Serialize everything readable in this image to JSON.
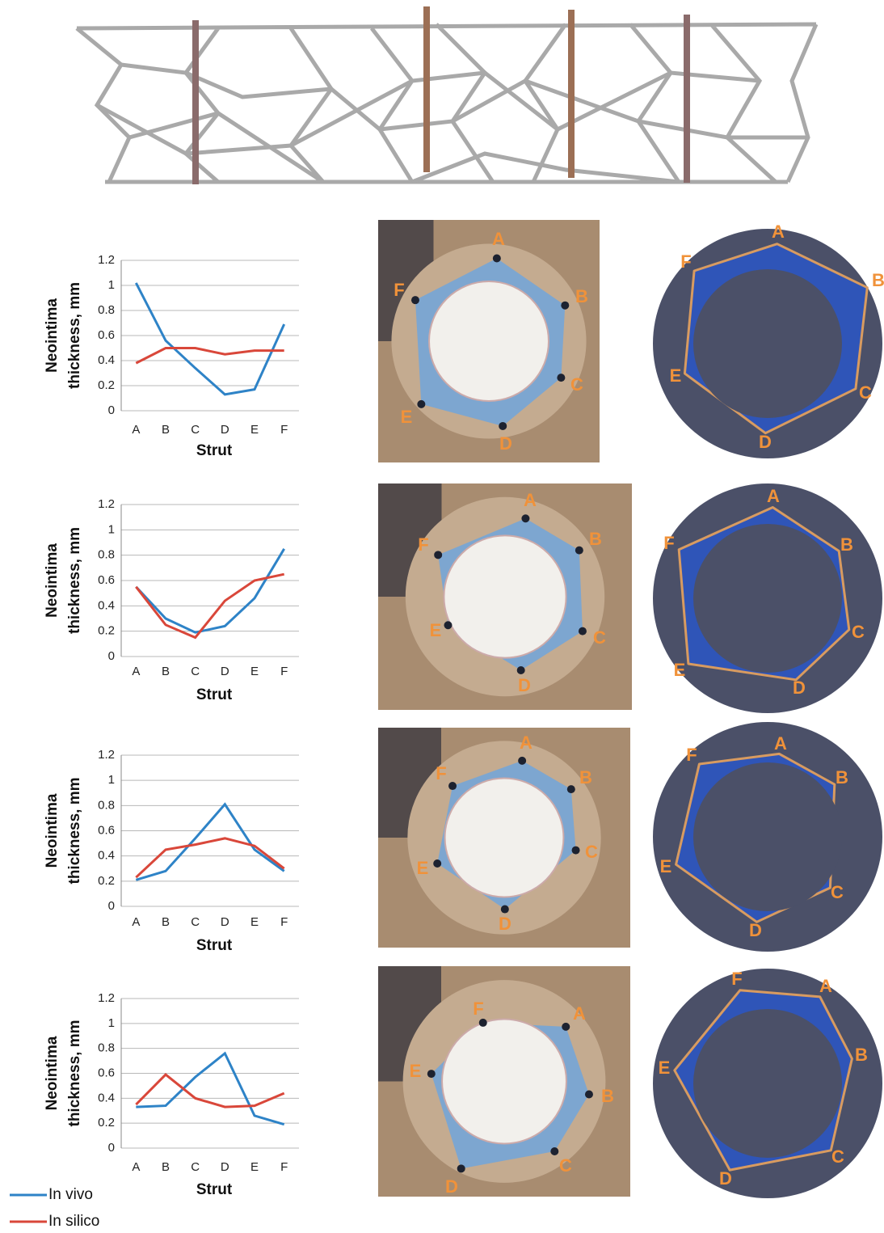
{
  "chart_data": [
    {
      "type": "line",
      "x_label": "Strut",
      "y_label": [
        "Neointima",
        "thickness, mm"
      ],
      "categories": [
        "A",
        "B",
        "C",
        "D",
        "E",
        "F"
      ],
      "ylim": [
        0,
        1.2
      ],
      "yticks": [
        0,
        0.2,
        0.4,
        0.6,
        0.8,
        1,
        1.2
      ],
      "grid": true,
      "series": [
        {
          "color": "#2e83c7",
          "values": [
            1.02,
            0.56,
            0.34,
            0.13,
            0.17,
            0.69
          ]
        },
        {
          "color": "#d9473a",
          "values": [
            0.38,
            0.5,
            0.5,
            0.45,
            0.48,
            0.48
          ]
        }
      ]
    },
    {
      "type": "line",
      "x_label": "Strut",
      "y_label": [
        "Neointima",
        "thickness, mm"
      ],
      "categories": [
        "A",
        "B",
        "C",
        "D",
        "E",
        "F"
      ],
      "ylim": [
        0,
        1.2
      ],
      "yticks": [
        0,
        0.2,
        0.4,
        0.6,
        0.8,
        1,
        1.2
      ],
      "grid": true,
      "series": [
        {
          "color": "#2e83c7",
          "values": [
            0.55,
            0.3,
            0.19,
            0.24,
            0.46,
            0.85
          ]
        },
        {
          "color": "#d9473a",
          "values": [
            0.55,
            0.25,
            0.15,
            0.44,
            0.6,
            0.65
          ]
        }
      ]
    },
    {
      "type": "line",
      "x_label": "Strut",
      "y_label": [
        "Neointima",
        "thickness, mm"
      ],
      "categories": [
        "A",
        "B",
        "C",
        "D",
        "E",
        "F"
      ],
      "ylim": [
        0,
        1.2
      ],
      "yticks": [
        0,
        0.2,
        0.4,
        0.6,
        0.8,
        1,
        1.2
      ],
      "grid": true,
      "series": [
        {
          "color": "#2e83c7",
          "values": [
            0.21,
            0.28,
            0.54,
            0.81,
            0.45,
            0.28
          ]
        },
        {
          "color": "#d9473a",
          "values": [
            0.23,
            0.45,
            0.49,
            0.54,
            0.48,
            0.3
          ]
        }
      ]
    },
    {
      "type": "line",
      "x_label": "Strut",
      "y_label": [
        "Neointima",
        "thickness, mm"
      ],
      "categories": [
        "A",
        "B",
        "C",
        "D",
        "E",
        "F"
      ],
      "ylim": [
        0,
        1.2
      ],
      "yticks": [
        0,
        0.2,
        0.4,
        0.6,
        0.8,
        1,
        1.2
      ],
      "grid": true,
      "series": [
        {
          "name": "In vivo",
          "color": "#2e83c7",
          "values": [
            0.33,
            0.34,
            0.57,
            0.76,
            0.26,
            0.19
          ]
        },
        {
          "name": "In silico",
          "color": "#d9473a",
          "values": [
            0.35,
            0.59,
            0.4,
            0.33,
            0.34,
            0.44
          ]
        }
      ]
    }
  ],
  "histology": [
    {
      "labels": [
        "A",
        "B",
        "C",
        "D",
        "E",
        "F"
      ]
    },
    {
      "labels": [
        "A",
        "B",
        "C",
        "D",
        "E",
        "F"
      ]
    },
    {
      "labels": [
        "A",
        "B",
        "C",
        "D",
        "E",
        "F"
      ]
    },
    {
      "labels": [
        "F",
        "A",
        "B",
        "C",
        "D",
        "E"
      ]
    }
  ],
  "simulation": [
    {
      "labels": [
        "A",
        "B",
        "C",
        "D",
        "E",
        "F"
      ]
    },
    {
      "labels": [
        "A",
        "B",
        "C",
        "D",
        "E",
        "F"
      ]
    },
    {
      "labels": [
        "A",
        "B",
        "C",
        "D",
        "E",
        "F"
      ]
    },
    {
      "labels": [
        "F",
        "A",
        "B",
        "C",
        "D",
        "E"
      ]
    }
  ]
}
